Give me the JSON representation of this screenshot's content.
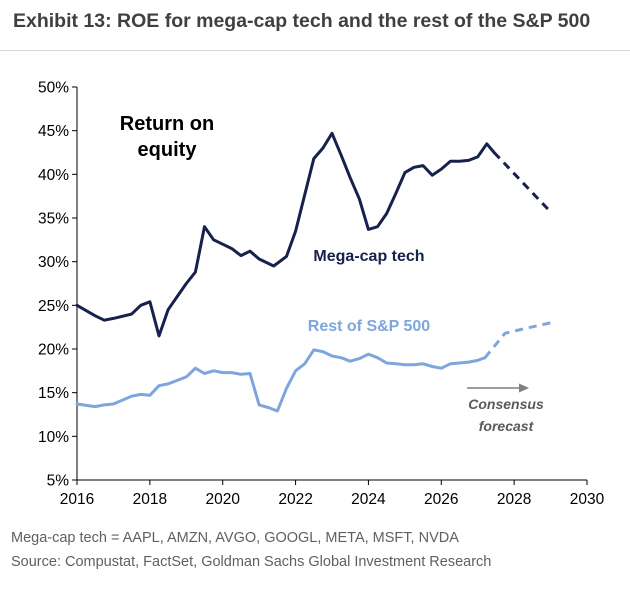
{
  "header": {
    "title": "Exhibit 13: ROE for mega-cap tech and the rest of the S&P 500"
  },
  "footer": {
    "note": "Mega-cap tech = AAPL, AMZN, AVGO, GOOGL, META, MSFT, NVDA",
    "source": "Source: Compustat, FactSet, Goldman Sachs Global Investment Research"
  },
  "chart_data": {
    "type": "line",
    "title": "",
    "xlabel": "",
    "ylabel": "",
    "xlim": [
      2016,
      2030
    ],
    "ylim": [
      5,
      50
    ],
    "x_ticks": [
      "2016",
      "2018",
      "2020",
      "2022",
      "2024",
      "2026",
      "2028",
      "2030"
    ],
    "y_ticks": [
      "5%",
      "10%",
      "15%",
      "20%",
      "25%",
      "30%",
      "35%",
      "40%",
      "45%",
      "50%"
    ],
    "grid": false,
    "legend": "none",
    "annotations": {
      "roe_label_1": "Return on",
      "roe_label_2": "equity",
      "consensus_1": "Consensus",
      "consensus_2": "forecast"
    },
    "series": [
      {
        "name": "Mega-cap tech",
        "color": "#17214d",
        "historical": [
          [
            2016.0,
            25.0
          ],
          [
            2016.5,
            23.8
          ],
          [
            2016.75,
            23.3
          ],
          [
            2017.0,
            23.5
          ],
          [
            2017.5,
            24.0
          ],
          [
            2017.75,
            25.0
          ],
          [
            2018.0,
            25.4
          ],
          [
            2018.25,
            21.5
          ],
          [
            2018.5,
            24.5
          ],
          [
            2019.0,
            27.5
          ],
          [
            2019.25,
            28.8
          ],
          [
            2019.5,
            34.0
          ],
          [
            2019.75,
            32.5
          ],
          [
            2020.0,
            32.0
          ],
          [
            2020.25,
            31.5
          ],
          [
            2020.5,
            30.7
          ],
          [
            2020.75,
            31.2
          ],
          [
            2021.0,
            30.3
          ],
          [
            2021.4,
            29.5
          ],
          [
            2021.75,
            30.6
          ],
          [
            2022.0,
            33.5
          ],
          [
            2022.5,
            41.8
          ],
          [
            2022.75,
            43.0
          ],
          [
            2023.0,
            44.7
          ],
          [
            2023.25,
            42.2
          ],
          [
            2023.5,
            39.6
          ],
          [
            2023.75,
            37.2
          ],
          [
            2024.0,
            33.7
          ],
          [
            2024.25,
            34.0
          ],
          [
            2024.5,
            35.5
          ],
          [
            2024.75,
            37.8
          ],
          [
            2025.0,
            40.2
          ],
          [
            2025.25,
            40.8
          ],
          [
            2025.5,
            41.0
          ],
          [
            2025.75,
            39.9
          ],
          [
            2026.0,
            40.6
          ],
          [
            2026.25,
            41.5
          ],
          [
            2026.5,
            41.5
          ],
          [
            2026.75,
            41.6
          ],
          [
            2027.0,
            42.0
          ],
          [
            2027.25,
            43.5
          ],
          [
            2027.45,
            42.5
          ]
        ],
        "forecast": [
          [
            2027.45,
            42.5
          ],
          [
            2029.0,
            35.7
          ]
        ]
      },
      {
        "name": "Rest of S&P 500",
        "color": "#7ea6dc",
        "historical": [
          [
            2016.0,
            13.7
          ],
          [
            2016.5,
            13.4
          ],
          [
            2016.75,
            13.6
          ],
          [
            2017.0,
            13.7
          ],
          [
            2017.5,
            14.6
          ],
          [
            2017.75,
            14.8
          ],
          [
            2018.0,
            14.7
          ],
          [
            2018.25,
            15.8
          ],
          [
            2018.5,
            16.0
          ],
          [
            2019.0,
            16.8
          ],
          [
            2019.25,
            17.8
          ],
          [
            2019.5,
            17.2
          ],
          [
            2019.75,
            17.5
          ],
          [
            2020.0,
            17.3
          ],
          [
            2020.25,
            17.3
          ],
          [
            2020.5,
            17.1
          ],
          [
            2020.75,
            17.2
          ],
          [
            2021.0,
            13.6
          ],
          [
            2021.25,
            13.3
          ],
          [
            2021.5,
            12.9
          ],
          [
            2021.75,
            15.5
          ],
          [
            2022.0,
            17.5
          ],
          [
            2022.25,
            18.3
          ],
          [
            2022.5,
            19.9
          ],
          [
            2022.75,
            19.7
          ],
          [
            2023.0,
            19.2
          ],
          [
            2023.25,
            19.0
          ],
          [
            2023.5,
            18.6
          ],
          [
            2023.75,
            18.9
          ],
          [
            2024.0,
            19.4
          ],
          [
            2024.25,
            19.0
          ],
          [
            2024.5,
            18.4
          ],
          [
            2024.75,
            18.3
          ],
          [
            2025.0,
            18.2
          ],
          [
            2025.25,
            18.2
          ],
          [
            2025.5,
            18.3
          ],
          [
            2025.75,
            18.0
          ],
          [
            2026.0,
            17.8
          ],
          [
            2026.25,
            18.3
          ],
          [
            2026.5,
            18.4
          ],
          [
            2026.75,
            18.5
          ],
          [
            2027.0,
            18.7
          ],
          [
            2027.2,
            19.0
          ]
        ],
        "forecast": [
          [
            2027.2,
            19.0
          ],
          [
            2027.75,
            21.8
          ],
          [
            2028.25,
            22.3
          ],
          [
            2029.0,
            23.0
          ]
        ]
      }
    ]
  }
}
